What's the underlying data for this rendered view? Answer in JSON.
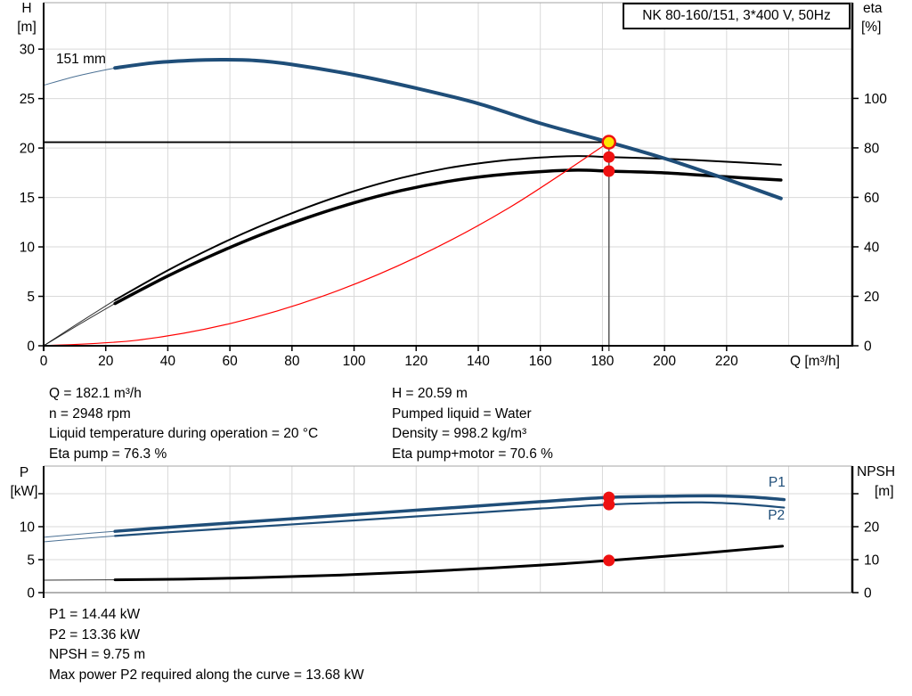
{
  "title_box": {
    "text": "NK 80-160/151, 3*400 V, 50Hz"
  },
  "axis_labels": {
    "top_left_1": "H",
    "top_left_2": "[m]",
    "top_right_1": "eta",
    "top_right_2": "[%]",
    "x": "Q [m³/h]",
    "bottom_left_1": "P",
    "bottom_left_2": "[kW]",
    "bottom_right_1": "NPSH",
    "bottom_right_2": "[m]"
  },
  "info_top": {
    "left": [
      "Q = 182.1 m³/h",
      "n = 2948 rpm",
      "Liquid temperature during operation = 20 °C",
      "Eta pump = 76.3 %"
    ],
    "right": [
      "H = 20.59 m",
      "Pumped liquid = Water",
      "Density = 998.2 kg/m³",
      "Eta pump+motor = 70.6 %"
    ]
  },
  "info_bottom": {
    "lines": [
      "P1 = 14.44 kW",
      "P2 = 13.36 kW",
      "NPSH = 9.75 m",
      "Max power P2 required along the curve = 13.68 kW"
    ]
  },
  "colors": {
    "blue": "#1f4e79",
    "black": "#000000",
    "red": "#ff0000",
    "marker_red": "#ee1111",
    "marker_yellow": "#ffe600",
    "grid": "#d9d9d9",
    "border_gray": "#a6a6a6",
    "bottom_border_gray": "#999999",
    "duty_line": "#555555"
  },
  "chart_data": [
    {
      "type": "line",
      "title": "NK 80-160/151, 3*400 V, 50Hz",
      "xlabel": "Q [m³/h]",
      "xlim": [
        0,
        260.5
      ],
      "x_ticks": [
        {
          "v": 0,
          "l": "0"
        },
        {
          "v": 20,
          "l": "20"
        },
        {
          "v": 40,
          "l": "40"
        },
        {
          "v": 60,
          "l": "60"
        },
        {
          "v": 80,
          "l": "80"
        },
        {
          "v": 100,
          "l": "100"
        },
        {
          "v": 120,
          "l": "120"
        },
        {
          "v": 140,
          "l": "140"
        },
        {
          "v": 160,
          "l": "160"
        },
        {
          "v": 180,
          "l": "180"
        },
        {
          "v": 200,
          "l": "200"
        },
        {
          "v": 220,
          "l": "220"
        }
      ],
      "x_gridlines": [
        20,
        40,
        60,
        80,
        100,
        120,
        140,
        160,
        180,
        200,
        220,
        240
      ],
      "y_left": {
        "name": "H [m]",
        "lim": [
          0,
          34.7
        ],
        "ticks": [
          {
            "v": 0,
            "l": "0"
          },
          {
            "v": 5,
            "l": "5"
          },
          {
            "v": 10,
            "l": "10"
          },
          {
            "v": 15,
            "l": "15"
          },
          {
            "v": 20,
            "l": "20"
          },
          {
            "v": 25,
            "l": "25"
          },
          {
            "v": 30,
            "l": "30"
          }
        ],
        "gridlines": [
          5,
          10,
          15,
          20,
          25,
          30
        ]
      },
      "y_right": {
        "name": "eta [%]",
        "lim": [
          0,
          138.7
        ],
        "ticks": [
          {
            "v": 0,
            "l": "0"
          },
          {
            "v": 20,
            "l": "20"
          },
          {
            "v": 40,
            "l": "40"
          },
          {
            "v": 60,
            "l": "60"
          },
          {
            "v": 80,
            "l": "80"
          },
          {
            "v": 100,
            "l": "100"
          }
        ]
      },
      "bottom_axis": "black",
      "duty_point": {
        "Q": 182.1,
        "H": 20.59,
        "eta_pump": 76.3,
        "eta_pump_motor": 70.6
      },
      "duty_cross": {
        "q": 182.1,
        "v": 20.59
      },
      "markers": [
        {
          "q": 182.1,
          "v": 20.59,
          "axis": "left",
          "style": "ring"
        },
        {
          "q": 182.1,
          "v": 76.3,
          "axis": "right",
          "style": "dot"
        },
        {
          "q": 182.1,
          "v": 70.6,
          "axis": "right",
          "style": "dot"
        }
      ],
      "series": [
        {
          "name": "eta-pump-curve",
          "axis": "right",
          "color": "#000000",
          "w": 2,
          "w_thin": 1,
          "split_q": 23,
          "points": [
            [
              0,
              0
            ],
            [
              11,
              9
            ],
            [
              23,
              18.5
            ],
            [
              40,
              30.5
            ],
            [
              55,
              40
            ],
            [
              70,
              48.5
            ],
            [
              85,
              56
            ],
            [
              100,
              62.5
            ],
            [
              115,
              67.8
            ],
            [
              130,
              71.8
            ],
            [
              145,
              74.5
            ],
            [
              160,
              76.1
            ],
            [
              172,
              76.7
            ],
            [
              182.1,
              76.3
            ],
            [
              200,
              75.6
            ],
            [
              220,
              74.4
            ],
            [
              237.5,
              73.2
            ]
          ]
        },
        {
          "name": "eta-pump-motor-curve",
          "axis": "right",
          "color": "#000000",
          "w": 3.5,
          "w_thin": 1,
          "split_q": 23,
          "points": [
            [
              0,
              0
            ],
            [
              11,
              8.3
            ],
            [
              23,
              17.1
            ],
            [
              40,
              28.2
            ],
            [
              55,
              37
            ],
            [
              70,
              44.9
            ],
            [
              85,
              51.8
            ],
            [
              100,
              57.8
            ],
            [
              115,
              62.7
            ],
            [
              130,
              66.4
            ],
            [
              145,
              68.9
            ],
            [
              160,
              70.4
            ],
            [
              172,
              71.0
            ],
            [
              182.1,
              70.6
            ],
            [
              200,
              69.9
            ],
            [
              220,
              68.3
            ],
            [
              237.5,
              67.0
            ]
          ]
        },
        {
          "name": "system-curve",
          "axis": "left",
          "color": "#ff0000",
          "w": 1.2,
          "w_thin": null,
          "split_q": null,
          "points": [
            [
              0,
              0
            ],
            [
              30,
              0.56
            ],
            [
              60,
              2.24
            ],
            [
              90,
              5.03
            ],
            [
              120,
              8.94
            ],
            [
              150,
              13.97
            ],
            [
              182.1,
              20.59
            ]
          ]
        },
        {
          "name": "head-curve-151mm",
          "axis": "left",
          "color": "#1f4e79",
          "w": 4,
          "w_thin": 1,
          "split_q": 23,
          "label": {
            "text": "151 mm",
            "q": 4,
            "v": 28.56,
            "anchor": "start",
            "color": "#000000"
          },
          "points": [
            [
              0,
              26.35
            ],
            [
              11,
              27.3
            ],
            [
              23,
              28.1
            ],
            [
              35,
              28.6
            ],
            [
              47,
              28.85
            ],
            [
              57,
              28.93
            ],
            [
              68,
              28.85
            ],
            [
              80,
              28.45
            ],
            [
              100,
              27.4
            ],
            [
              120,
              26.05
            ],
            [
              140,
              24.5
            ],
            [
              160,
              22.5
            ],
            [
              182.1,
              20.59
            ],
            [
              200,
              18.95
            ],
            [
              220,
              16.85
            ],
            [
              237.5,
              14.9
            ]
          ]
        }
      ]
    },
    {
      "type": "line",
      "title": "Power and NPSH curves",
      "xlabel": "",
      "xlim": [
        0,
        260.5
      ],
      "x_ticks": [],
      "x_gridlines": [
        20,
        40,
        60,
        80,
        100,
        120,
        140,
        160,
        180,
        200,
        220,
        240
      ],
      "y_left": {
        "name": "P [kW]",
        "lim": [
          0,
          19.19
        ],
        "ticks": [
          {
            "v": 0,
            "l": "0"
          },
          {
            "v": 5,
            "l": "5"
          },
          {
            "v": 10,
            "l": "10"
          },
          {
            "v": 15,
            "l": ""
          }
        ],
        "gridlines": [
          5,
          10,
          15
        ]
      },
      "y_right": {
        "name": "NPSH [m]",
        "lim": [
          0,
          38.38
        ],
        "ticks": [
          {
            "v": 0,
            "l": "0"
          },
          {
            "v": 10,
            "l": "10"
          },
          {
            "v": 20,
            "l": "20"
          },
          {
            "v": 30,
            "l": ""
          }
        ]
      },
      "bottom_axis": "gray",
      "duty_point": {
        "Q": 182.1,
        "P1": 14.44,
        "P2": 13.36,
        "NPSH": 9.75
      },
      "duty_cross": null,
      "markers": [
        {
          "q": 182.1,
          "v": 14.44,
          "axis": "left",
          "style": "dot"
        },
        {
          "q": 182.1,
          "v": 13.36,
          "axis": "left",
          "style": "dot"
        },
        {
          "q": 182.1,
          "v": 9.75,
          "axis": "right",
          "style": "dot"
        }
      ],
      "series": [
        {
          "name": "p1-curve",
          "axis": "left",
          "color": "#1f4e79",
          "w": 3.5,
          "w_thin": 1,
          "split_q": 23,
          "label": {
            "text": "P1",
            "q": 233.5,
            "v": 16.1,
            "anchor": "start",
            "color": "#1f4e79"
          },
          "points": [
            [
              0,
              8.4
            ],
            [
              11,
              8.85
            ],
            [
              23,
              9.3
            ],
            [
              40,
              9.9
            ],
            [
              60,
              10.55
            ],
            [
              80,
              11.2
            ],
            [
              100,
              11.85
            ],
            [
              120,
              12.5
            ],
            [
              140,
              13.15
            ],
            [
              160,
              13.8
            ],
            [
              182.1,
              14.44
            ],
            [
              200,
              14.62
            ],
            [
              215,
              14.68
            ],
            [
              228,
              14.5
            ],
            [
              238.5,
              14.1
            ]
          ]
        },
        {
          "name": "p2-curve",
          "axis": "left",
          "color": "#1f4e79",
          "w": 2.2,
          "w_thin": 1,
          "split_q": 23,
          "label": {
            "text": "P2",
            "q": 233.3,
            "v": 11.05,
            "anchor": "start",
            "color": "#1f4e79"
          },
          "points": [
            [
              0,
              7.7
            ],
            [
              11,
              8.15
            ],
            [
              23,
              8.6
            ],
            [
              40,
              9.15
            ],
            [
              60,
              9.75
            ],
            [
              80,
              10.35
            ],
            [
              100,
              10.95
            ],
            [
              120,
              11.55
            ],
            [
              140,
              12.15
            ],
            [
              160,
              12.75
            ],
            [
              182.1,
              13.36
            ],
            [
              198,
              13.6
            ],
            [
              212,
              13.68
            ],
            [
              226,
              13.4
            ],
            [
              238.5,
              12.9
            ]
          ]
        },
        {
          "name": "npsh-curve",
          "axis": "right",
          "color": "#000000",
          "w": 3,
          "w_thin": 1,
          "split_q": 23,
          "points": [
            [
              0,
              3.8
            ],
            [
              23,
              3.9
            ],
            [
              45,
              4.1
            ],
            [
              70,
              4.6
            ],
            [
              95,
              5.3
            ],
            [
              120,
              6.3
            ],
            [
              145,
              7.5
            ],
            [
              165,
              8.6
            ],
            [
              182.1,
              9.75
            ],
            [
              200,
              11.0
            ],
            [
              220,
              12.6
            ],
            [
              238,
              14.1
            ]
          ]
        }
      ]
    }
  ]
}
